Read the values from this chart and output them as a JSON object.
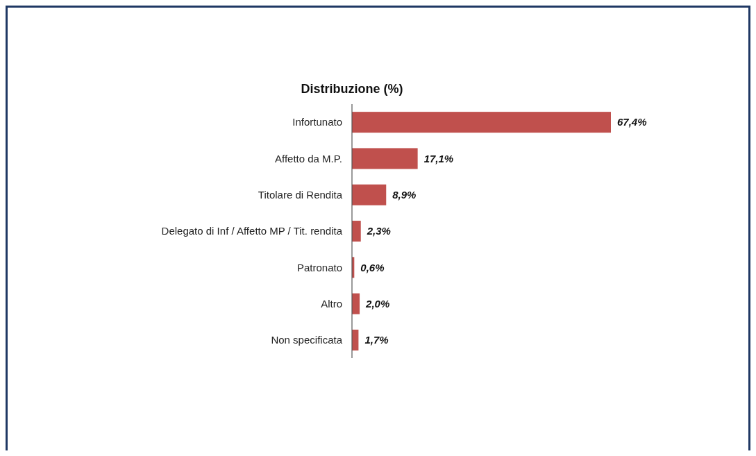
{
  "chart_data": {
    "type": "bar",
    "orientation": "horizontal",
    "title": "Distribuzione (%)",
    "categories": [
      "Infortunato",
      "Affetto da M.P.",
      "Titolare di Rendita",
      "Delegato di Inf / Affetto MP / Tit. rendita",
      "Patronato",
      "Altro",
      "Non specificata"
    ],
    "values": [
      67.4,
      17.1,
      8.9,
      2.3,
      0.6,
      2.0,
      1.7
    ],
    "value_labels": [
      "67,4%",
      "17,1%",
      "8,9%",
      "2,3%",
      "0,6%",
      "2,0%",
      "1,7%"
    ],
    "color": "#c0504d"
  }
}
